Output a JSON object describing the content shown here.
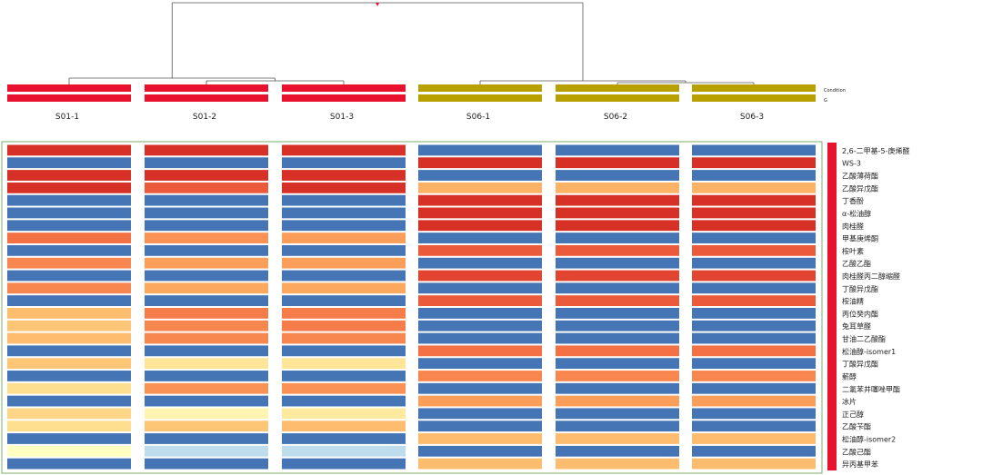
{
  "chart_data": {
    "type": "heatmap",
    "title": "",
    "samples": [
      "S01-1",
      "S01-2",
      "S01-3",
      "S06-1",
      "S06-2",
      "S06-3"
    ],
    "condition_legend": {
      "title": "Condition",
      "group_label": "G"
    },
    "groups": [
      {
        "name": "S01",
        "samples": [
          "S01-1",
          "S01-2",
          "S01-3"
        ],
        "color": "#e8112e"
      },
      {
        "name": "S06",
        "samples": [
          "S06-1",
          "S06-2",
          "S06-3"
        ],
        "color": "#b8a000"
      }
    ],
    "color_scale": {
      "min": -2,
      "max": 2,
      "stops": [
        "#4575b4",
        "#91bfdb",
        "#e0f3f8",
        "#ffffbf",
        "#fee090",
        "#fdae61",
        "#f46d43",
        "#d73027"
      ]
    },
    "rows": [
      {
        "name": "2,6-二甲基-5-庚烯醛",
        "values": [
          2.0,
          2.0,
          2.0,
          -2.0,
          -2.0,
          -2.0
        ]
      },
      {
        "name": "WS-3",
        "values": [
          -2.0,
          -2.0,
          -2.0,
          2.0,
          2.0,
          2.0
        ]
      },
      {
        "name": "乙酸薄荷酯",
        "values": [
          2.0,
          2.0,
          2.0,
          -2.0,
          -2.0,
          -2.0
        ]
      },
      {
        "name": "乙酸异戊酯",
        "values": [
          2.0,
          1.6,
          2.0,
          0.8,
          0.8,
          0.8
        ]
      },
      {
        "name": "丁香酚",
        "values": [
          -2.0,
          -2.0,
          -2.0,
          2.0,
          2.0,
          2.0
        ]
      },
      {
        "name": "α-松油醇",
        "values": [
          -2.0,
          -2.0,
          -2.0,
          2.0,
          2.0,
          2.0
        ]
      },
      {
        "name": "肉桂醛",
        "values": [
          -2.0,
          -2.0,
          -2.0,
          2.0,
          2.0,
          2.0
        ]
      },
      {
        "name": "甲基庚烯酮",
        "values": [
          1.4,
          1.1,
          1.0,
          -2.0,
          -2.0,
          -2.0
        ]
      },
      {
        "name": "桉叶素",
        "values": [
          -2.0,
          -2.0,
          -2.0,
          1.6,
          1.6,
          1.6
        ]
      },
      {
        "name": "乙酸乙酯",
        "values": [
          1.2,
          1.0,
          1.0,
          -2.0,
          -2.0,
          -2.0
        ]
      },
      {
        "name": "肉桂醛丙二醇缩醛",
        "values": [
          -2.0,
          -2.0,
          -2.0,
          1.8,
          1.8,
          1.8
        ]
      },
      {
        "name": "丁酸异戊酯",
        "values": [
          1.2,
          0.9,
          0.9,
          -2.0,
          -2.0,
          -2.0
        ]
      },
      {
        "name": "桉油精",
        "values": [
          -2.0,
          -2.0,
          -2.0,
          1.6,
          1.6,
          1.6
        ]
      },
      {
        "name": "丙位癸内酯",
        "values": [
          0.7,
          1.3,
          1.3,
          -2.0,
          -2.0,
          -2.0
        ]
      },
      {
        "name": "兔耳草醛",
        "values": [
          0.6,
          1.2,
          1.3,
          -2.0,
          -2.0,
          -2.0
        ]
      },
      {
        "name": "甘油二乙酸酯",
        "values": [
          0.7,
          1.2,
          1.2,
          -2.0,
          -2.0,
          -2.0
        ]
      },
      {
        "name": "松油醇-isomer1",
        "values": [
          -2.0,
          -2.0,
          -2.0,
          1.4,
          1.4,
          1.4
        ]
      },
      {
        "name": "丁酸异戊酯",
        "values": [
          0.6,
          0.2,
          0.2,
          -2.0,
          -2.0,
          -2.0
        ]
      },
      {
        "name": "薪醇",
        "values": [
          -2.0,
          -2.0,
          -2.0,
          1.2,
          1.2,
          1.2
        ]
      },
      {
        "name": "二氢苯并噻唑甲酯",
        "values": [
          0.3,
          1.1,
          1.1,
          -2.0,
          -2.0,
          -2.0
        ]
      },
      {
        "name": "冰片",
        "values": [
          -2.0,
          -2.0,
          -2.0,
          1.0,
          1.0,
          1.0
        ]
      },
      {
        "name": "正己醇",
        "values": [
          0.4,
          -0.1,
          0.1,
          -2.0,
          -2.0,
          -2.0
        ]
      },
      {
        "name": "乙酸苄酯",
        "values": [
          0.3,
          0.6,
          0.7,
          -2.0,
          -2.0,
          -2.0
        ]
      },
      {
        "name": "松油醇-isomer2",
        "values": [
          -2.0,
          -2.0,
          -2.0,
          0.7,
          0.7,
          0.7
        ]
      },
      {
        "name": "乙酸己酯",
        "values": [
          -0.3,
          -1.1,
          -1.1,
          -2.0,
          -2.0,
          -2.0
        ]
      },
      {
        "name": "异丙基甲苯",
        "values": [
          -2.0,
          -2.0,
          -2.0,
          0.7,
          0.7,
          0.7
        ]
      }
    ],
    "dendrogram": "columns clustered into S01 and S06 groups"
  }
}
